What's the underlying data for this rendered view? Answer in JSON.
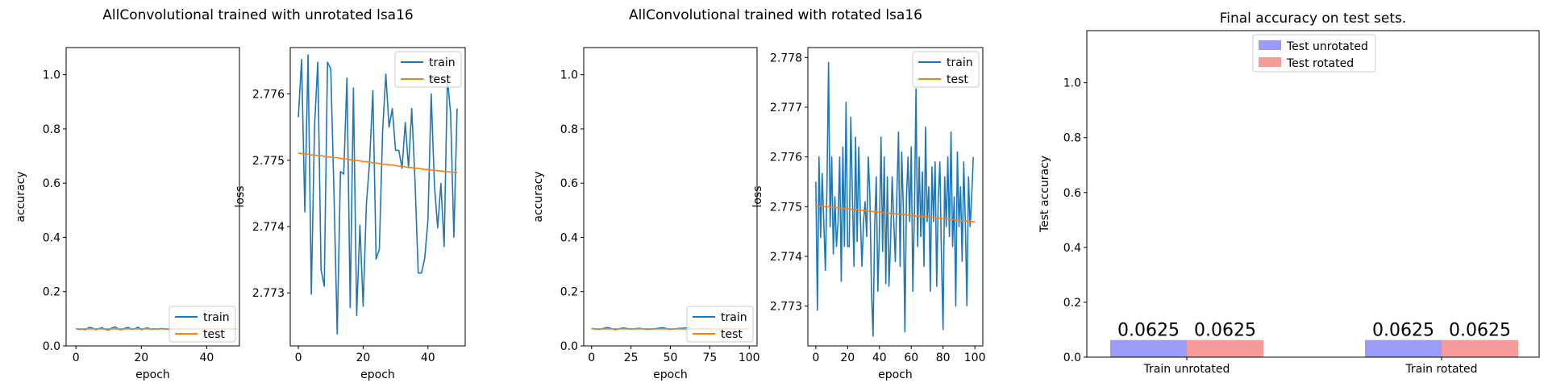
{
  "chart_data": [
    {
      "type": "line",
      "title": "AllConvolutional trained with unrotated lsa16",
      "panels": [
        {
          "xlabel": "epoch",
          "ylabel": "accuracy",
          "xlim": [
            -3,
            50
          ],
          "ylim": [
            0,
            1.1
          ],
          "xticks": [
            0,
            20,
            40
          ],
          "yticks": [
            0.0,
            0.2,
            0.4,
            0.6,
            0.8,
            1.0
          ],
          "ytick_labels": [
            "0.0",
            "0.2",
            "0.4",
            "0.6",
            "0.8",
            "1.0"
          ],
          "legend": "lower-right",
          "series": [
            {
              "name": "train",
              "color": "#1f77b4",
              "x_start": 0,
              "x_step": 1,
              "values": [
                0.063,
                0.061,
                0.062,
                0.06,
                0.068,
                0.066,
                0.06,
                0.064,
                0.067,
                0.061,
                0.059,
                0.066,
                0.07,
                0.062,
                0.06,
                0.065,
                0.068,
                0.061,
                0.063,
                0.069,
                0.06,
                0.064,
                0.066,
                0.061,
                0.063,
                0.062,
                0.064,
                0.063,
                0.062,
                0.061,
                0.063,
                0.062,
                0.064,
                0.063,
                0.062,
                0.063,
                0.062,
                0.064,
                0.063,
                0.062,
                0.063,
                0.062,
                0.063,
                0.062,
                0.064,
                0.063,
                0.062,
                0.063,
                0.062,
                0.063
              ]
            },
            {
              "name": "test",
              "color": "#ff7f0e",
              "x_start": 0,
              "x_step": 1,
              "values": [
                0.0625,
                0.0625,
                0.0625,
                0.0625,
                0.0625,
                0.0625,
                0.0625,
                0.0625,
                0.0625,
                0.0625,
                0.0625,
                0.0625,
                0.0625,
                0.0625,
                0.0625,
                0.0625,
                0.0625,
                0.0625,
                0.0625,
                0.0625,
                0.0625,
                0.0625,
                0.0625,
                0.0625,
                0.0625,
                0.0625,
                0.0625,
                0.0625,
                0.0625,
                0.0625,
                0.0625,
                0.0625,
                0.0625,
                0.0625,
                0.0625,
                0.0625,
                0.0625,
                0.0625,
                0.0625,
                0.0625,
                0.0625,
                0.0625,
                0.0625,
                0.0625,
                0.0625,
                0.0625,
                0.0625,
                0.0625,
                0.0625,
                0.0625
              ]
            }
          ]
        },
        {
          "xlabel": "epoch",
          "ylabel": "loss",
          "xlim": [
            -2.5,
            51.5
          ],
          "ylim": [
            2.7722,
            2.7767
          ],
          "xticks": [
            0,
            20,
            40
          ],
          "yticks": [
            2.773,
            2.774,
            2.775,
            2.776
          ],
          "ytick_labels": [
            "2.773",
            "2.774",
            "2.775",
            "2.776"
          ],
          "legend": "upper-right",
          "series": [
            {
              "name": "train",
              "color": "#1f77b4",
              "x_start": 0,
              "x_step": 1,
              "values": [
                2.77565,
                2.77652,
                2.77422,
                2.77659,
                2.77298,
                2.77552,
                2.77648,
                2.77335,
                2.7731,
                2.77648,
                2.77638,
                2.7745,
                2.77238,
                2.77483,
                2.77479,
                2.77624,
                2.77278,
                2.77609,
                2.77266,
                2.77402,
                2.7728,
                2.77434,
                2.77498,
                2.77605,
                2.77351,
                2.77366,
                2.77543,
                2.7763,
                2.7755,
                2.77578,
                2.77515,
                2.77515,
                2.77488,
                2.77557,
                2.77489,
                2.77578,
                2.7747,
                2.7733,
                2.7733,
                2.77352,
                2.7741,
                2.776,
                2.77463,
                2.77398,
                2.77465,
                2.7737,
                2.77625,
                2.7757,
                2.77384,
                2.77578
              ]
            },
            {
              "name": "test",
              "color": "#ff7f0e",
              "x_start": 0,
              "x_step": 1,
              "values": [
                2.77511,
                2.7751,
                2.7751,
                2.77509,
                2.77508,
                2.77508,
                2.77507,
                2.77507,
                2.77506,
                2.77505,
                2.77505,
                2.77504,
                2.77504,
                2.77503,
                2.77502,
                2.77502,
                2.77501,
                2.775,
                2.775,
                2.77499,
                2.77498,
                2.77498,
                2.77497,
                2.77496,
                2.77496,
                2.77495,
                2.77494,
                2.77494,
                2.77493,
                2.77493,
                2.77492,
                2.77491,
                2.77491,
                2.7749,
                2.77489,
                2.77489,
                2.77488,
                2.77488,
                2.77487,
                2.77486,
                2.77486,
                2.77485,
                2.77485,
                2.77484,
                2.77484,
                2.77483,
                2.77483,
                2.77482,
                2.77482,
                2.77481
              ]
            }
          ]
        }
      ]
    },
    {
      "type": "line",
      "title": "AllConvolutional trained with rotated lsa16",
      "panels": [
        {
          "xlabel": "epoch",
          "ylabel": "accuracy",
          "xlim": [
            -5,
            105
          ],
          "ylim": [
            0,
            1.1
          ],
          "xticks": [
            0,
            25,
            50,
            75,
            100
          ],
          "yticks": [
            0.0,
            0.2,
            0.4,
            0.6,
            0.8,
            1.0
          ],
          "ytick_labels": [
            "0.0",
            "0.2",
            "0.4",
            "0.6",
            "0.8",
            "1.0"
          ],
          "legend": "lower-right",
          "series": [
            {
              "name": "train",
              "color": "#1f77b4",
              "x_start": 0,
              "x_step": 5,
              "values": [
                0.064,
                0.061,
                0.068,
                0.06,
                0.066,
                0.062,
                0.065,
                0.061,
                0.063,
                0.067,
                0.061,
                0.064,
                0.066,
                0.062,
                0.065,
                0.063,
                0.062,
                0.064,
                0.063,
                0.062,
                0.063
              ]
            },
            {
              "name": "test",
              "color": "#ff7f0e",
              "x_start": 0,
              "x_step": 5,
              "values": [
                0.0625,
                0.0625,
                0.0625,
                0.0625,
                0.0625,
                0.0625,
                0.0625,
                0.0625,
                0.0625,
                0.0625,
                0.0625,
                0.0625,
                0.0625,
                0.0625,
                0.0625,
                0.0625,
                0.0625,
                0.0625,
                0.0625,
                0.0625,
                0.0625
              ]
            }
          ]
        },
        {
          "xlabel": "epoch",
          "ylabel": "loss",
          "xlim": [
            -5,
            105
          ],
          "ylim": [
            2.7722,
            2.7782
          ],
          "xticks": [
            0,
            20,
            40,
            60,
            80,
            100
          ],
          "yticks": [
            2.773,
            2.774,
            2.775,
            2.776,
            2.777,
            2.778
          ],
          "ytick_labels": [
            "2.773",
            "2.774",
            "2.775",
            "2.776",
            "2.777",
            "2.778"
          ],
          "legend": "upper-right",
          "series": [
            {
              "name": "train",
              "color": "#1f77b4",
              "x_start": 0,
              "x_step": 1,
              "values": [
                2.7755,
                2.77292,
                2.776,
                2.77438,
                2.77567,
                2.7747,
                2.77372,
                2.7754,
                2.7779,
                2.7746,
                2.776,
                2.77405,
                2.7752,
                2.7742,
                2.7747,
                2.776,
                2.7735,
                2.7762,
                2.7742,
                2.7771,
                2.7742,
                2.7742,
                2.7768,
                2.7752,
                2.7738,
                2.7764,
                2.7743,
                2.7762,
                2.7748,
                2.7738,
                2.7747,
                2.7751,
                2.7744,
                2.776,
                2.7752,
                2.7733,
                2.7724,
                2.7746,
                2.7756,
                2.7733,
                2.7745,
                2.7764,
                2.7741,
                2.776,
                2.77345,
                2.7756,
                2.7734,
                2.7743,
                2.7756,
                2.7747,
                2.7739,
                2.7753,
                2.7765,
                2.7738,
                2.7761,
                2.775,
                2.77248,
                2.7752,
                2.776,
                2.7747,
                2.7762,
                2.7733,
                2.7749,
                2.77737,
                2.7742,
                2.776,
                2.7744,
                2.7757,
                2.7738,
                2.7766,
                2.7747,
                2.7754,
                2.7733,
                2.7758,
                2.7747,
                2.7759,
                2.7734,
                2.7752,
                2.7759,
                2.774,
                2.77253,
                2.7756,
                2.7746,
                2.776,
                2.7744,
                2.7765,
                2.7742,
                2.7752,
                2.773,
                2.7761,
                2.7746,
                2.7754,
                2.7739,
                2.7759,
                2.7747,
                2.77301,
                2.7756,
                2.7746,
                2.7752,
                2.776
              ]
            },
            {
              "name": "test",
              "color": "#ff7f0e",
              "x_start": 0,
              "x_step": 1,
              "values": [
                2.77502,
                2.77502,
                2.77501,
                2.77501,
                2.77501,
                2.775,
                2.775,
                2.775,
                2.775,
                2.77499,
                2.77499,
                2.77499,
                2.77498,
                2.77498,
                2.77498,
                2.77497,
                2.77497,
                2.77497,
                2.77496,
                2.77496,
                2.77496,
                2.77495,
                2.77495,
                2.77495,
                2.77494,
                2.77494,
                2.77494,
                2.77493,
                2.77493,
                2.77493,
                2.77492,
                2.77492,
                2.77492,
                2.77491,
                2.77491,
                2.77491,
                2.7749,
                2.7749,
                2.7749,
                2.77489,
                2.77489,
                2.77489,
                2.77488,
                2.77488,
                2.77488,
                2.77487,
                2.77487,
                2.77487,
                2.77486,
                2.77486,
                2.77486,
                2.77485,
                2.77485,
                2.77485,
                2.77484,
                2.77484,
                2.77484,
                2.77483,
                2.77483,
                2.77483,
                2.77482,
                2.77482,
                2.77482,
                2.77481,
                2.77481,
                2.77481,
                2.7748,
                2.7748,
                2.7748,
                2.7748,
                2.77479,
                2.77479,
                2.77479,
                2.77478,
                2.77478,
                2.77478,
                2.77477,
                2.77477,
                2.77477,
                2.77476,
                2.77476,
                2.77476,
                2.77475,
                2.77475,
                2.77475,
                2.77474,
                2.77474,
                2.77474,
                2.77473,
                2.77473,
                2.77473,
                2.77472,
                2.77472,
                2.77472,
                2.77471,
                2.77471,
                2.77471,
                2.7747,
                2.7747,
                2.7747,
                2.77469
              ]
            }
          ]
        }
      ]
    },
    {
      "type": "bar",
      "title": "Final accuracy on test sets.",
      "categories": [
        "Train unrotated",
        "Train rotated"
      ],
      "ylabel": "Test accuracy",
      "ylim": [
        0,
        1.19
      ],
      "yticks": [
        0.0,
        0.2,
        0.4,
        0.6,
        0.8,
        1.0
      ],
      "ytick_labels": [
        "0.0",
        "0.2",
        "0.4",
        "0.6",
        "0.8",
        "1.0"
      ],
      "legend": "upper-center",
      "series": [
        {
          "name": "Test unrotated",
          "color": "#9b9bf8",
          "values": [
            0.0625,
            0.0625
          ],
          "labels": [
            "0.0625",
            "0.0625"
          ]
        },
        {
          "name": "Test rotated",
          "color": "#f89b9b",
          "values": [
            0.0625,
            0.0625
          ],
          "labels": [
            "0.0625",
            "0.0625"
          ]
        }
      ]
    }
  ]
}
